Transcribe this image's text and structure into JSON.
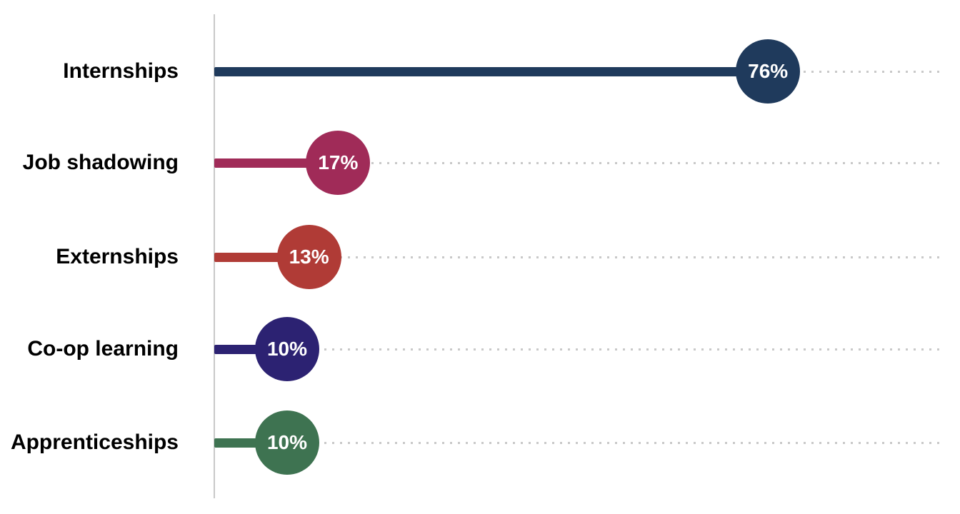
{
  "chart_data": {
    "type": "bar",
    "variant": "lollipop",
    "title": "",
    "xlabel": "",
    "ylabel": "",
    "categories": [
      "Internships",
      "Job shadowing",
      "Externships",
      "Co-op learning",
      "Apprenticeships"
    ],
    "values": [
      76,
      17,
      13,
      10,
      10
    ],
    "value_labels": [
      "76%",
      "17%",
      "13%",
      "10%",
      "10%"
    ],
    "colors": [
      "#1f3a5c",
      "#a02b58",
      "#b03b36",
      "#2c2272",
      "#3e7351"
    ],
    "xlim": [
      0,
      100
    ],
    "orientation": "horizontal",
    "legend": "none",
    "grid": "dotted row leader lines",
    "axis_color": "#c8c8c8",
    "leader_dot_color": "#c9c9c9",
    "category_label_color": "#000000",
    "value_label_color": "#ffffff"
  }
}
